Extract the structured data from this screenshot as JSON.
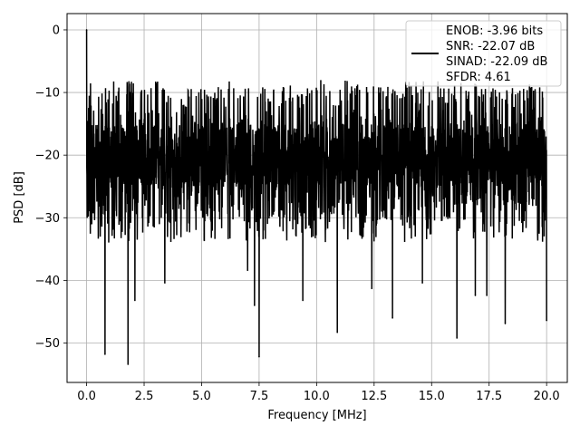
{
  "chart_data": {
    "type": "line",
    "xlabel": "Frequency [MHz]",
    "ylabel": "PSD [dB]",
    "xlim": [
      -0.85,
      20.9
    ],
    "ylim": [
      -56.3,
      2.6
    ],
    "xticks": [
      0.0,
      2.5,
      5.0,
      7.5,
      10.0,
      12.5,
      15.0,
      17.5,
      20.0
    ],
    "xtick_labels": [
      "0.0",
      "2.5",
      "5.0",
      "7.5",
      "10.0",
      "12.5",
      "15.0",
      "17.5",
      "20.0"
    ],
    "yticks": [
      0,
      -10,
      -20,
      -30,
      -40,
      -50
    ],
    "ytick_labels": [
      "0",
      "−10",
      "−20",
      "−30",
      "−40",
      "−50"
    ],
    "grid": true,
    "legend_position": "top-right",
    "series_color": "#000000",
    "legend": [
      "ENOB: -3.96 bits",
      "SNR: -22.07 dB",
      "SINAD: -22.09 dB",
      "SFDR: 4.61"
    ],
    "x_range": [
      0.0,
      20.0
    ],
    "noise_floor_db": -20,
    "noise_band_db": [
      -30,
      -10
    ],
    "peak_points": [
      [
        0.0,
        0.0
      ]
    ],
    "dip_points": [
      [
        0.8,
        -51.8
      ],
      [
        1.8,
        -53.4
      ],
      [
        2.1,
        -43.2
      ],
      [
        3.4,
        -40.4
      ],
      [
        7.0,
        -38.4
      ],
      [
        7.3,
        -44.0
      ],
      [
        7.5,
        -52.2
      ],
      [
        9.4,
        -43.2
      ],
      [
        10.9,
        -48.3
      ],
      [
        12.4,
        -41.3
      ],
      [
        13.3,
        -46.0
      ],
      [
        14.6,
        -40.4
      ],
      [
        16.1,
        -49.2
      ],
      [
        16.9,
        -42.4
      ],
      [
        17.4,
        -42.4
      ],
      [
        18.2,
        -46.9
      ],
      [
        20.0,
        -46.4
      ]
    ]
  }
}
